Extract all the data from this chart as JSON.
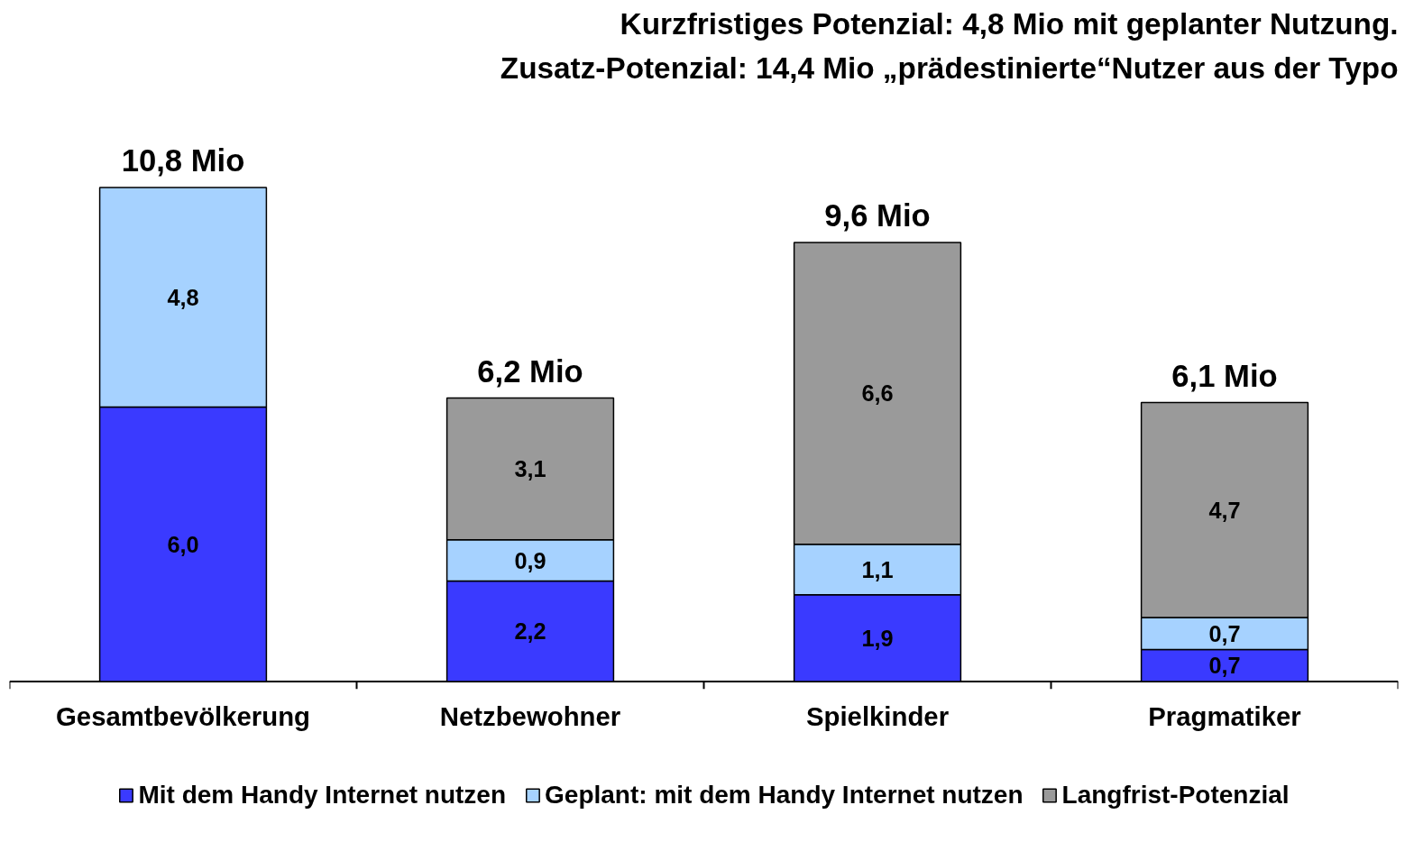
{
  "chart_data": {
    "type": "bar",
    "stacked": true,
    "title": "Kurzfristiges Potenzial: 4,8 Mio mit geplanter Nutzung.",
    "subtitle": "Zusatz-Potenzial: 14,4 Mio „prädestinierte“Nutzer aus der Typo",
    "categories": [
      "Gesamtbevölkerung",
      "Netzbewohner",
      "Spielkinder",
      "Pragmatiker"
    ],
    "series": [
      {
        "name": "Mit dem Handy Internet nutzen",
        "color": "#3a3aff",
        "values": [
          6.0,
          2.2,
          1.9,
          0.7
        ],
        "value_labels": [
          "6,0",
          "2,2",
          "1,9",
          "0,7"
        ]
      },
      {
        "name": "Geplant: mit dem Handy Internet nutzen",
        "color": "#a6d2ff",
        "values": [
          4.8,
          0.9,
          1.1,
          0.7
        ],
        "value_labels": [
          "4,8",
          "0,9",
          "1,1",
          "0,7"
        ]
      },
      {
        "name": "Langfrist-Potenzial",
        "color": "#9a9a9a",
        "values": [
          null,
          3.1,
          6.6,
          4.7
        ],
        "value_labels": [
          null,
          "3,1",
          "6,6",
          "4,7"
        ]
      }
    ],
    "totals": [
      "10,8 Mio",
      "6,2 Mio",
      "9,6 Mio",
      "6,1 Mio"
    ],
    "legend": "bottom",
    "grid": false
  }
}
